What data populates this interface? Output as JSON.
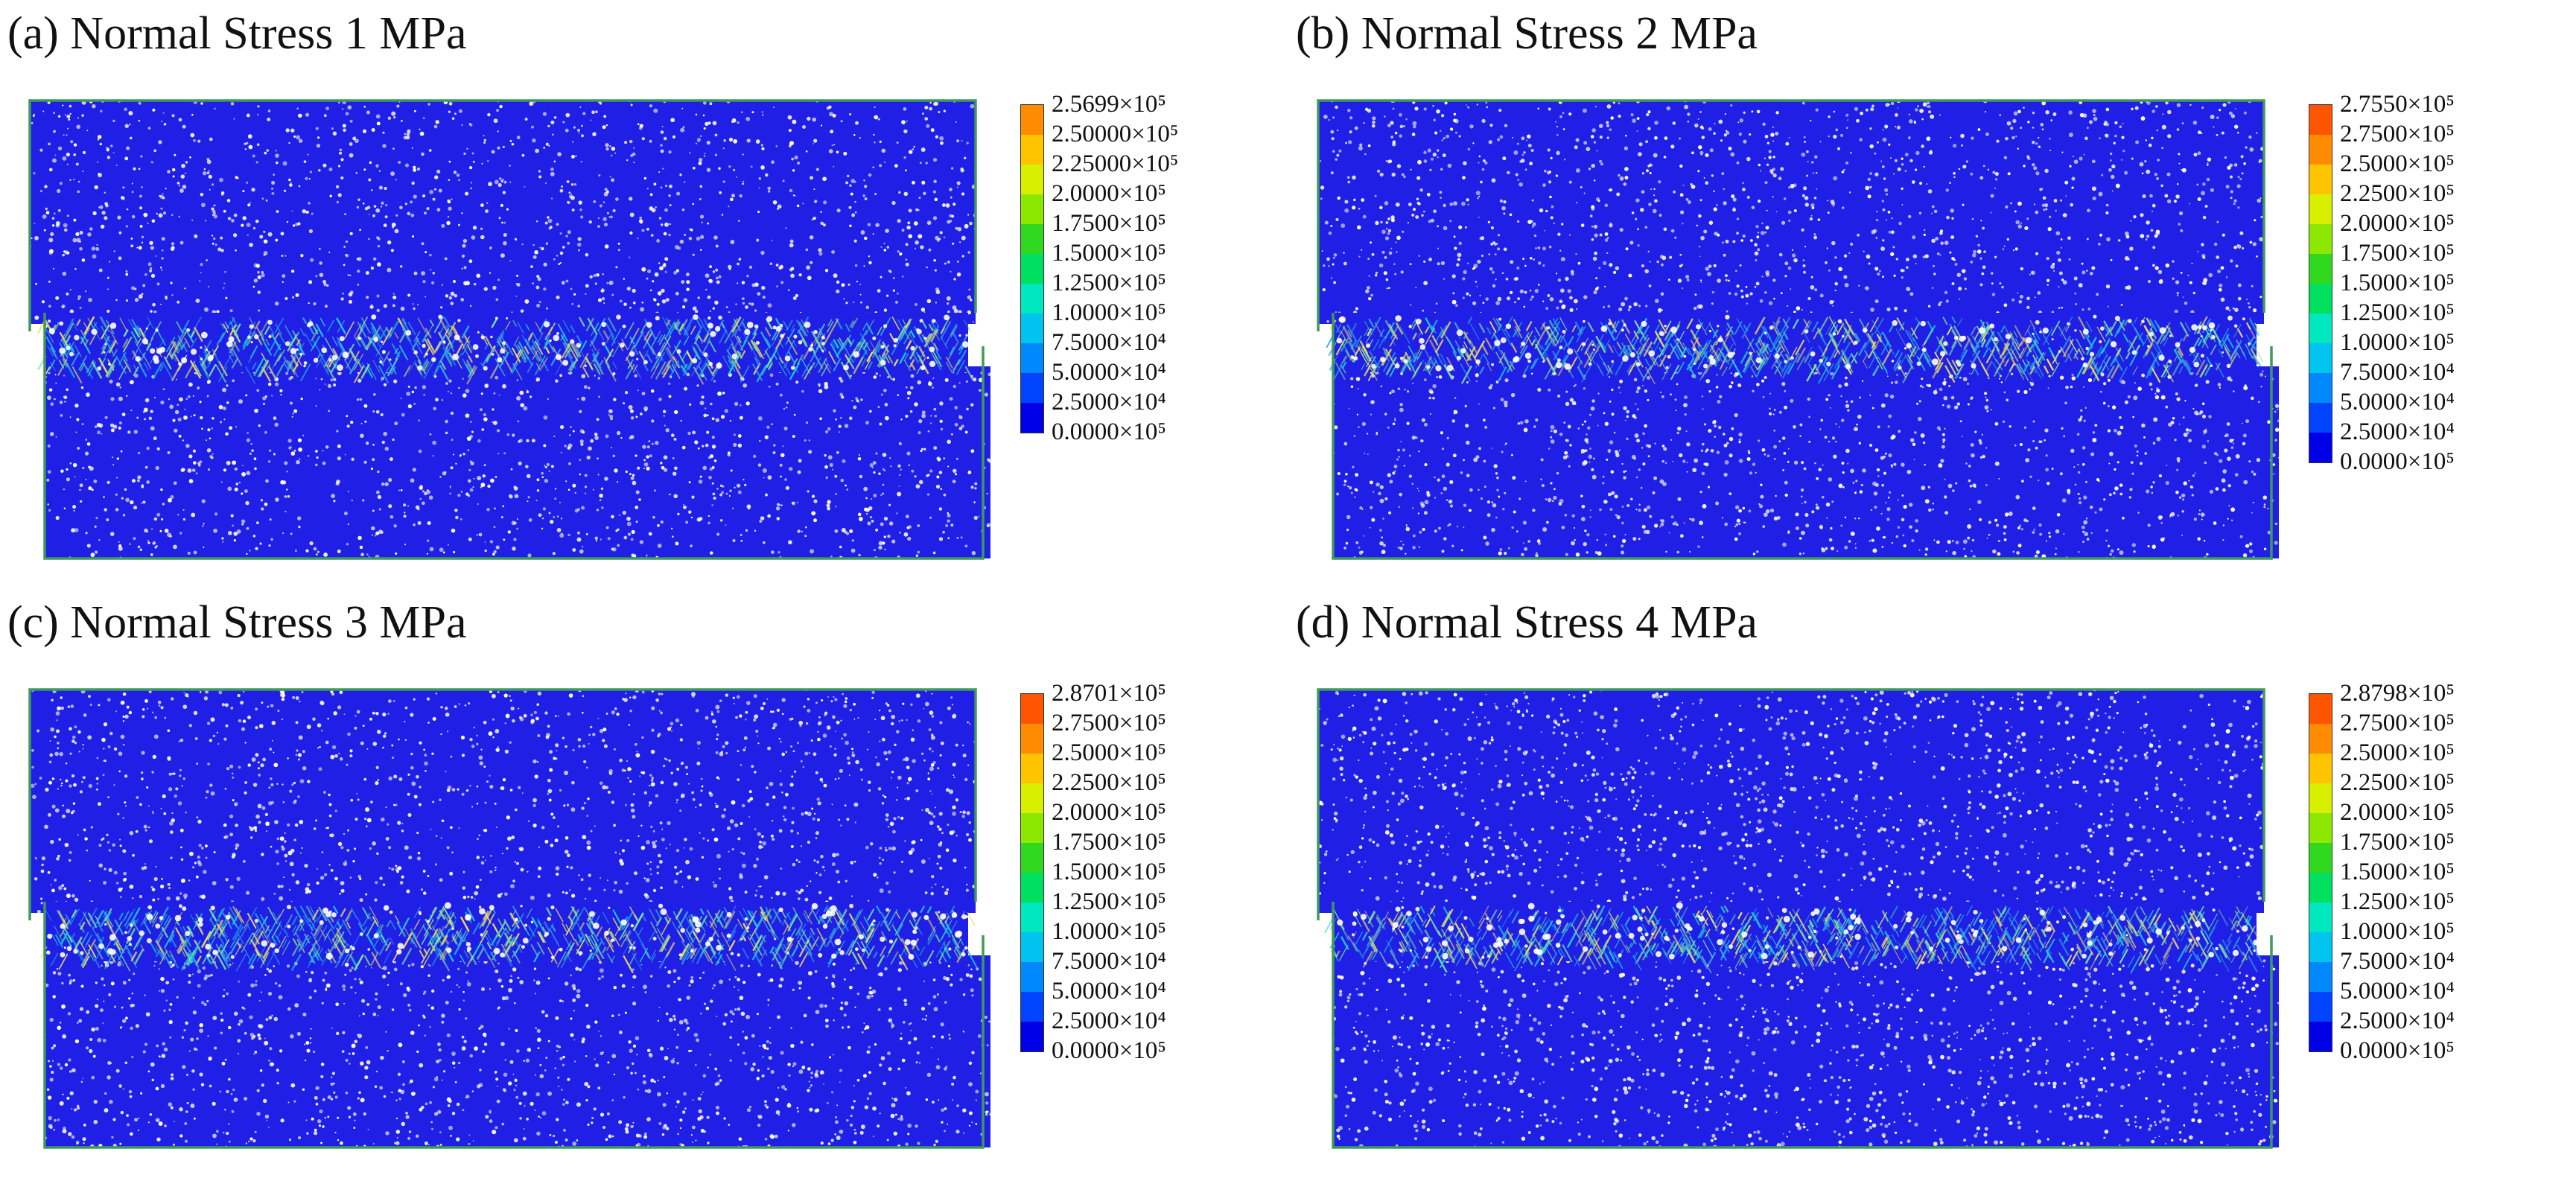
{
  "figure": {
    "panels": [
      {
        "title": "(a) Normal Stress 1 MPa",
        "seed": 11,
        "legend_labels": [
          "2.5699×10⁵",
          "2.50000×10⁵",
          "2.25000×10⁵",
          "2.0000×10⁵",
          "1.7500×10⁵",
          "1.5000×10⁵",
          "1.2500×10⁵",
          "1.0000×10⁵",
          "7.5000×10⁴",
          "5.0000×10⁴",
          "2.5000×10⁴",
          "0.0000×10⁵"
        ]
      },
      {
        "title": "(b) Normal Stress 2 MPa",
        "seed": 23,
        "legend_labels": [
          "2.7550×10⁵",
          "2.7500×10⁵",
          "2.5000×10⁵",
          "2.2500×10⁵",
          "2.0000×10⁵",
          "1.7500×10⁵",
          "1.5000×10⁵",
          "1.2500×10⁵",
          "1.0000×10⁵",
          "7.5000×10⁴",
          "5.0000×10⁴",
          "2.5000×10⁴",
          "0.0000×10⁵"
        ]
      },
      {
        "title": "(c) Normal Stress 3 MPa",
        "seed": 37,
        "legend_labels": [
          "2.8701×10⁵",
          "2.7500×10⁵",
          "2.5000×10⁵",
          "2.2500×10⁵",
          "2.0000×10⁵",
          "1.7500×10⁵",
          "1.5000×10⁵",
          "1.2500×10⁵",
          "1.0000×10⁵",
          "7.5000×10⁴",
          "5.0000×10⁴",
          "2.5000×10⁴",
          "0.0000×10⁵"
        ]
      },
      {
        "title": "(d) Normal Stress 4 MPa",
        "seed": 53,
        "legend_labels": [
          "2.8798×10⁵",
          "2.7500×10⁵",
          "2.5000×10⁵",
          "2.2500×10⁵",
          "2.0000×10⁵",
          "1.7500×10⁵",
          "1.5000×10⁵",
          "1.2500×10⁵",
          "1.0000×10⁵",
          "7.5000×10⁴",
          "5.0000×10⁴",
          "2.5000×10⁴",
          "0.0000×10⁵"
        ]
      }
    ],
    "colors": {
      "particle": "#1f1fe6",
      "background": "#ffffff",
      "wall": "#3f9a5a",
      "shear_band": [
        "#20c8d8",
        "#7ee0a0",
        "#f0e060",
        "#30a8e8"
      ],
      "legend_scale": [
        "#ff0000",
        "#ff5500",
        "#ff8c00",
        "#ffc400",
        "#d8f000",
        "#8ce800",
        "#30d820",
        "#00e060",
        "#00e8c0",
        "#00c4f0",
        "#0088ff",
        "#0044ff",
        "#0000e8"
      ]
    }
  }
}
